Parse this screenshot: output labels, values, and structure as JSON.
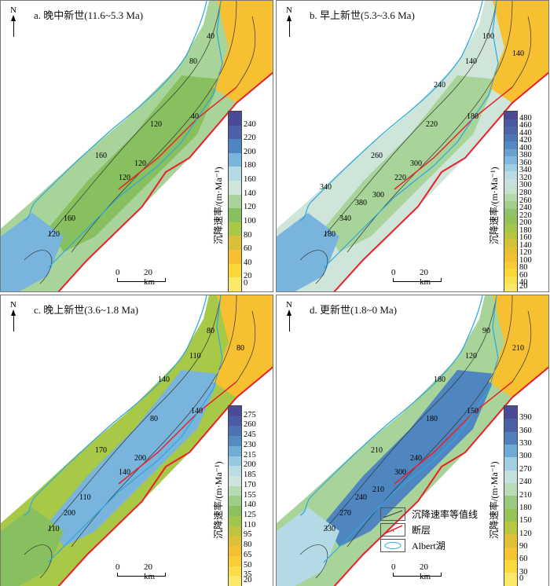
{
  "colorbar_title": "沉降速率/(m·Ma⁻¹)",
  "north_label": "N",
  "panels": [
    {
      "id": "a",
      "title": "a. 晚中新世(11.6~5.3 Ma)",
      "scale": {
        "zero": "0",
        "dist": "20 km"
      },
      "legend_values": [
        "240",
        "220",
        "200",
        "180",
        "160",
        "140",
        "120",
        "100",
        "80",
        "60",
        "40",
        "20",
        "0"
      ],
      "contour_labels": [
        "40",
        "80",
        "40",
        "120",
        "160",
        "120",
        "160",
        "120",
        "120"
      ]
    },
    {
      "id": "b",
      "title": "b. 早上新世(5.3~3.6 Ma)",
      "scale": {
        "zero": "0",
        "dist": "20 km"
      },
      "legend_values": [
        "480",
        "460",
        "440",
        "420",
        "400",
        "380",
        "360",
        "340",
        "320",
        "300",
        "280",
        "260",
        "240",
        "220",
        "200",
        "180",
        "160",
        "140",
        "120",
        "100",
        "80",
        "60",
        "40",
        "20"
      ],
      "contour_labels": [
        "100",
        "140",
        "180",
        "220",
        "260",
        "300",
        "340",
        "220",
        "180",
        "140",
        "240",
        "380",
        "300",
        "340"
      ]
    },
    {
      "id": "c",
      "title": "c. 晚上新世(3.6~1.8 Ma)",
      "scale": {
        "zero": "0",
        "dist": "20 km"
      },
      "legend_values": [
        "275",
        "260",
        "245",
        "230",
        "215",
        "200",
        "185",
        "170",
        "155",
        "140",
        "125",
        "110",
        "95",
        "80",
        "65",
        "50",
        "35",
        "20"
      ],
      "contour_labels": [
        "80",
        "110",
        "140",
        "80",
        "170",
        "200",
        "200",
        "140",
        "110",
        "80",
        "140",
        "110"
      ]
    },
    {
      "id": "d",
      "title": "d. 更新世(1.8~0 Ma)",
      "scale": {
        "zero": "0",
        "dist": "20 km"
      },
      "legend_values": [
        "390",
        "360",
        "330",
        "300",
        "270",
        "240",
        "210",
        "180",
        "150",
        "120",
        "90",
        "60",
        "30",
        "0"
      ],
      "contour_labels": [
        "90",
        "120",
        "150",
        "180",
        "210",
        "240",
        "270",
        "300",
        "330",
        "210",
        "180",
        "240",
        "210"
      ]
    }
  ],
  "legend": [
    {
      "label": "沉降速率等值线",
      "icon": "contour-line-icon"
    },
    {
      "label": "断层",
      "icon": "fault-line-icon"
    },
    {
      "label": "Albert湖",
      "icon": "lake-icon"
    }
  ],
  "colors": {
    "fault": "#e8202a",
    "lake": "#2aa8e0",
    "contour": "#333333"
  }
}
